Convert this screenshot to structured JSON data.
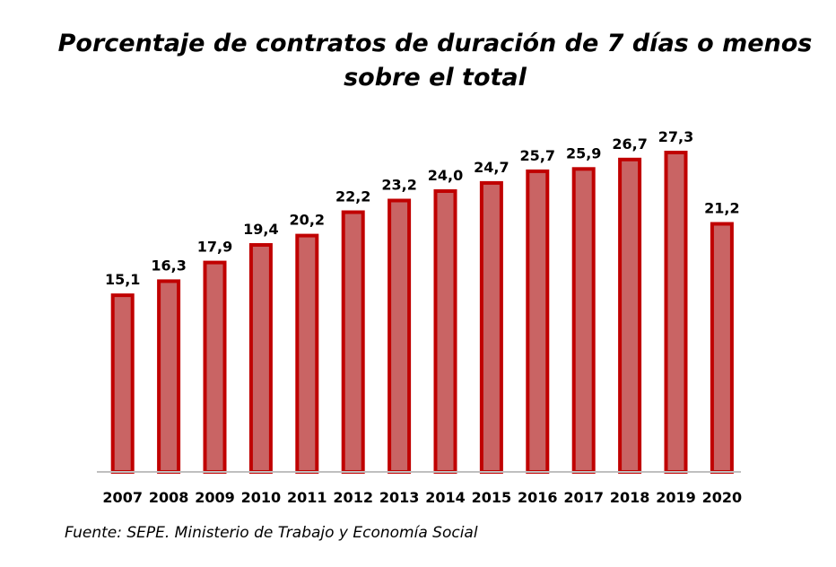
{
  "chart_data": {
    "type": "bar",
    "title": "Porcentaje de contratos de duración de 7 días o menos sobre el total",
    "categories": [
      "2007",
      "2008",
      "2009",
      "2010",
      "2011",
      "2012",
      "2013",
      "2014",
      "2015",
      "2016",
      "2017",
      "2018",
      "2019",
      "2020"
    ],
    "values": [
      15.1,
      16.3,
      17.9,
      19.4,
      20.2,
      22.2,
      23.2,
      24.0,
      24.7,
      25.7,
      25.9,
      26.7,
      27.3,
      21.2
    ],
    "data_labels": [
      "15,1",
      "16,3",
      "17,9",
      "19,4",
      "20,2",
      "22,2",
      "23,2",
      "24,0",
      "24,7",
      "25,7",
      "25,9",
      "26,7",
      "27,3",
      "21,2"
    ],
    "xlabel": "",
    "ylabel": "",
    "ylim": [
      0,
      27.3
    ],
    "grid": false,
    "legend": "none",
    "colors": {
      "bar_fill": "#c96464",
      "bar_border": "#c00000",
      "axis": "#bfbfbf"
    }
  },
  "source": "Fuente: SEPE. Ministerio de Trabajo y Economía Social"
}
